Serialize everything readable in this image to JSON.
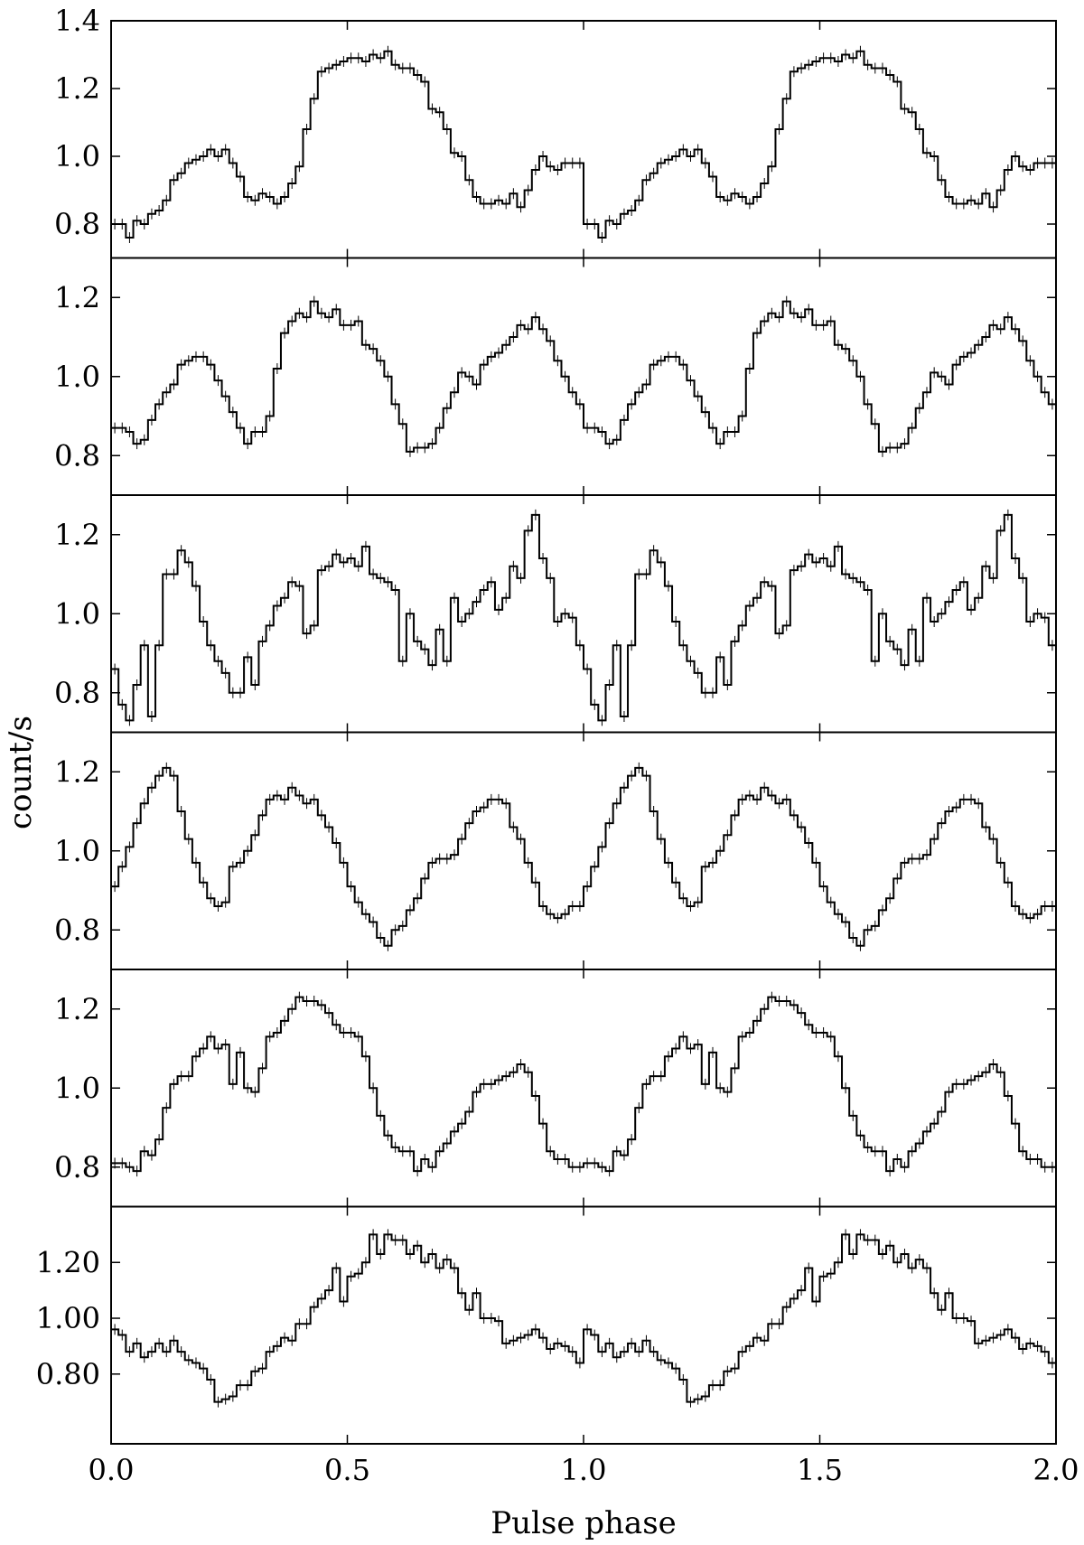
{
  "chart_data": {
    "type": "line",
    "style": "step-with-errorbars",
    "stacked_panels": true,
    "xlabel": "Pulse phase",
    "ylabel": "count/s",
    "xlim": [
      0.0,
      2.0
    ],
    "x_tick_labels": [
      "0.0",
      "0.5",
      "1.0",
      "1.5",
      "2.0"
    ],
    "bins_per_cycle": 64,
    "line_color": "#000000",
    "background": "#ffffff",
    "panels": [
      {
        "ylim": [
          0.7,
          1.4
        ],
        "y_ticks": [
          0.8,
          1.0,
          1.2,
          1.4
        ],
        "y_tick_labels": [
          "0.8",
          "1.0",
          "1.2",
          "1.4"
        ],
        "values": [
          0.8,
          0.8,
          0.76,
          0.81,
          0.8,
          0.83,
          0.84,
          0.87,
          0.93,
          0.95,
          0.98,
          0.99,
          1.0,
          1.02,
          1.0,
          1.02,
          0.98,
          0.94,
          0.88,
          0.87,
          0.89,
          0.88,
          0.86,
          0.88,
          0.92,
          0.97,
          1.08,
          1.17,
          1.25,
          1.26,
          1.27,
          1.28,
          1.29,
          1.29,
          1.28,
          1.3,
          1.29,
          1.31,
          1.27,
          1.26,
          1.26,
          1.24,
          1.22,
          1.14,
          1.13,
          1.08,
          1.01,
          1.0,
          0.93,
          0.88,
          0.86,
          0.86,
          0.87,
          0.86,
          0.89,
          0.85,
          0.9,
          0.96,
          1.0,
          0.97,
          0.96,
          0.98,
          0.98,
          0.98
        ]
      },
      {
        "ylim": [
          0.7,
          1.3
        ],
        "y_ticks": [
          0.8,
          1.0,
          1.2
        ],
        "y_tick_labels": [
          "0.8",
          "1.0",
          "1.2"
        ],
        "values": [
          0.87,
          0.87,
          0.86,
          0.83,
          0.84,
          0.89,
          0.93,
          0.96,
          0.98,
          1.03,
          1.04,
          1.05,
          1.05,
          1.03,
          0.99,
          0.95,
          0.91,
          0.87,
          0.83,
          0.86,
          0.86,
          0.9,
          1.02,
          1.11,
          1.14,
          1.16,
          1.15,
          1.19,
          1.16,
          1.15,
          1.17,
          1.13,
          1.13,
          1.14,
          1.08,
          1.07,
          1.04,
          1.0,
          0.93,
          0.88,
          0.81,
          0.82,
          0.82,
          0.83,
          0.87,
          0.92,
          0.96,
          1.01,
          1.0,
          0.98,
          1.03,
          1.05,
          1.06,
          1.08,
          1.1,
          1.13,
          1.12,
          1.15,
          1.12,
          1.09,
          1.04,
          1.0,
          0.96,
          0.93
        ]
      },
      {
        "ylim": [
          0.7,
          1.3
        ],
        "y_ticks": [
          0.8,
          1.0,
          1.2
        ],
        "y_tick_labels": [
          "0.8",
          "1.0",
          "1.2"
        ],
        "values": [
          0.86,
          0.77,
          0.73,
          0.82,
          0.92,
          0.74,
          0.92,
          1.1,
          1.1,
          1.16,
          1.13,
          1.07,
          0.98,
          0.92,
          0.88,
          0.85,
          0.8,
          0.8,
          0.89,
          0.82,
          0.93,
          0.97,
          1.02,
          1.04,
          1.08,
          1.07,
          0.95,
          0.97,
          1.11,
          1.12,
          1.15,
          1.13,
          1.14,
          1.12,
          1.17,
          1.1,
          1.09,
          1.08,
          1.06,
          0.88,
          1.0,
          0.93,
          0.91,
          0.87,
          0.96,
          0.88,
          1.04,
          0.98,
          1.0,
          1.03,
          1.06,
          1.08,
          1.01,
          1.04,
          1.12,
          1.09,
          1.21,
          1.25,
          1.14,
          1.09,
          0.98,
          1.0,
          0.99,
          0.92
        ]
      },
      {
        "ylim": [
          0.7,
          1.3
        ],
        "y_ticks": [
          0.8,
          1.0,
          1.2
        ],
        "y_tick_labels": [
          "0.8",
          "1.0",
          "1.2"
        ],
        "values": [
          0.91,
          0.96,
          1.01,
          1.07,
          1.12,
          1.16,
          1.19,
          1.21,
          1.19,
          1.1,
          1.03,
          0.97,
          0.92,
          0.88,
          0.86,
          0.87,
          0.96,
          0.97,
          1.0,
          1.04,
          1.09,
          1.13,
          1.14,
          1.13,
          1.16,
          1.14,
          1.12,
          1.13,
          1.09,
          1.06,
          1.02,
          0.97,
          0.91,
          0.87,
          0.84,
          0.82,
          0.78,
          0.76,
          0.8,
          0.81,
          0.85,
          0.88,
          0.93,
          0.97,
          0.98,
          0.98,
          0.99,
          1.03,
          1.07,
          1.1,
          1.11,
          1.13,
          1.13,
          1.12,
          1.06,
          1.03,
          0.97,
          0.92,
          0.86,
          0.84,
          0.83,
          0.84,
          0.86,
          0.86
        ]
      },
      {
        "ylim": [
          0.7,
          1.3
        ],
        "y_ticks": [
          0.8,
          1.0,
          1.2
        ],
        "y_tick_labels": [
          "0.8",
          "1.0",
          "1.2"
        ],
        "values": [
          0.81,
          0.81,
          0.8,
          0.79,
          0.84,
          0.83,
          0.87,
          0.95,
          1.01,
          1.03,
          1.03,
          1.08,
          1.1,
          1.13,
          1.1,
          1.11,
          1.01,
          1.09,
          1.0,
          0.99,
          1.05,
          1.13,
          1.14,
          1.17,
          1.2,
          1.23,
          1.22,
          1.22,
          1.21,
          1.19,
          1.16,
          1.14,
          1.14,
          1.13,
          1.08,
          1.0,
          0.93,
          0.88,
          0.85,
          0.84,
          0.84,
          0.79,
          0.82,
          0.8,
          0.84,
          0.86,
          0.89,
          0.91,
          0.94,
          0.99,
          1.01,
          1.01,
          1.02,
          1.03,
          1.04,
          1.06,
          1.04,
          0.98,
          0.91,
          0.84,
          0.82,
          0.82,
          0.8,
          0.8
        ]
      },
      {
        "ylim": [
          0.55,
          1.4
        ],
        "y_ticks": [
          0.8,
          1.0,
          1.2
        ],
        "y_tick_labels": [
          "0.80",
          "1.00",
          "1.20"
        ],
        "values": [
          0.96,
          0.94,
          0.88,
          0.91,
          0.86,
          0.88,
          0.91,
          0.88,
          0.92,
          0.88,
          0.85,
          0.84,
          0.82,
          0.78,
          0.7,
          0.71,
          0.72,
          0.76,
          0.76,
          0.81,
          0.82,
          0.88,
          0.9,
          0.93,
          0.92,
          0.98,
          0.98,
          1.04,
          1.07,
          1.1,
          1.18,
          1.06,
          1.15,
          1.16,
          1.2,
          1.3,
          1.23,
          1.3,
          1.28,
          1.28,
          1.23,
          1.26,
          1.2,
          1.23,
          1.18,
          1.21,
          1.18,
          1.09,
          1.03,
          1.09,
          1.0,
          1.0,
          0.99,
          0.91,
          0.92,
          0.93,
          0.94,
          0.96,
          0.93,
          0.89,
          0.91,
          0.9,
          0.88,
          0.84
        ]
      }
    ]
  }
}
